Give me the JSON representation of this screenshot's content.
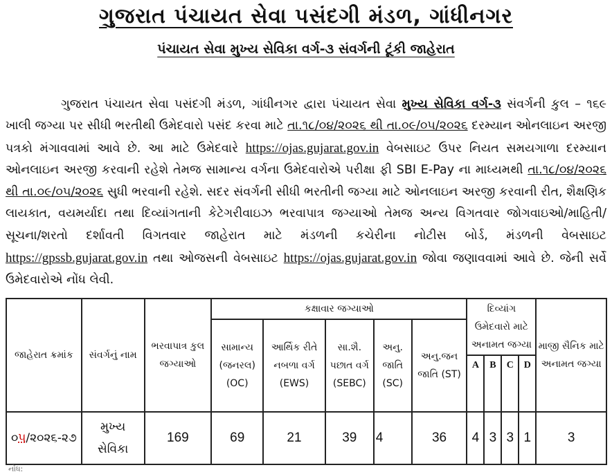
{
  "header": {
    "title": "ગુજરાત પંચાયત સેવા પસંદગી મંડળ, ગાંધીનગર",
    "subtitle": "પંચાયત સેવા મુખ્ય સેવિકા વર્ગ-૩ સંવર્ગની ટૂંકી જાહેરાત"
  },
  "body": {
    "s1": "ગુજરાત પંચાયત સેવા પસંદગી મંડળ, ગાંધીનગર દ્વારા પંચાયત સેવા ",
    "post": "મુખ્ય સેવિકા વર્ગ-૩",
    "s2": " સંવર્ગની કુલ – ૧૬૯ ખાલી જગ્યા પર સીધી ભરતીથી ઉમેદવારો પસંદ કરવા માટે ",
    "dates1": "તા.૧૮/૦૪/૨૦૨૬ થી તા.૦૯/૦૫/૨૦૨૬",
    "s3": " દરમ્યાન ઓનલાઇન અરજી પત્રકો મંગાવવામાં આવે છે. આ માટે ઉમેદવારે ",
    "link1": "https://ojas.gujarat.gov.in",
    "s4": " વેબસાઇટ ઉપર નિયત સમયગાળા દરમ્યાન ઓનલાઇન અરજી કરવાની રહેશે તેમજ સામાન્ય વર્ગના ઉમેદવારોએ પરીક્ષા ફી SBI E-Pay ના માધ્યમથી ",
    "dates2": "તા.૧૮/૦૪/૨૦૨૬ થી તા.૦૯/૦૫/૨૦૨૬",
    "s5": " સુધી ભરવાની રહેશે. સદર સંવર્ગની સીધી ભરતીની જગ્યા માટે ઓનલાઇન અરજી કરવાની રીત, શૈક્ષણિક લાયકાત, વયમર્યાદા તથા દિવ્યાંગતાની કેટેગરીવાઇઝ ભરવાપાત્ર જગ્યાઓ તેમજ અન્ય વિગતવાર જોગવાઇઓ/માહિતી/સૂચના/શરતો દર્શાવતી વિગતવાર જાહેરાત માટે મંડળની કચેરીના નોટીસ બોર્ડ, મંડળની વેબસાઇટ ",
    "link2": "https://gpssb.gujarat.gov.in",
    "s6": " તથા ઓજસની વેબસાઇટ ",
    "link3": "https://ojas.gujarat.gov.in",
    "s7": " જોવા જણાવવામાં આવે છે. જેની સર્વે ઉમેદવારોએ નોંધ લેવી."
  },
  "table": {
    "headers": {
      "advt_no": "જાહેરાત ક્રમાંક",
      "cadre_name": "સંવર્ગનું નામ",
      "total": "ભરવાપાત્ર કુલ જગ્યાઓ",
      "category_group": "કક્ષાવાર જગ્યાઓ",
      "general": "સામાન્ય (જનરલ) (OC)",
      "ews": "આર્થિક રીતે નબળા વર્ગ (EWS)",
      "sebc": "સા.શૈ. પછાત વર્ગ (SEBC)",
      "sc": "અનુ. જાતિ (SC)",
      "st": "અનુ.જન જાતિ (ST)",
      "disabled_group": "દિવ્યાંગ ઉમેદવારો માટે અનામત જગ્યા",
      "a": "A",
      "b": "B",
      "c": "C",
      "d": "D",
      "ex_serviceman": "માજી સૈનિક માટે અનામત જગ્યા"
    },
    "rows": [
      {
        "advt_no_a": "૦",
        "advt_no_red": "૫",
        "advt_no_b": "/૨૦૨૬-૨૭",
        "cadre_name": "મુખ્ય સેવિકા",
        "total": "169",
        "general": "69",
        "ews": "21",
        "sebc": "39",
        "sc": "4",
        "st": "36",
        "a": "4",
        "b": "3",
        "c": "3",
        "d": "1",
        "ex_serviceman": "3"
      }
    ]
  },
  "footer": {
    "note": "નોંધ:"
  }
}
